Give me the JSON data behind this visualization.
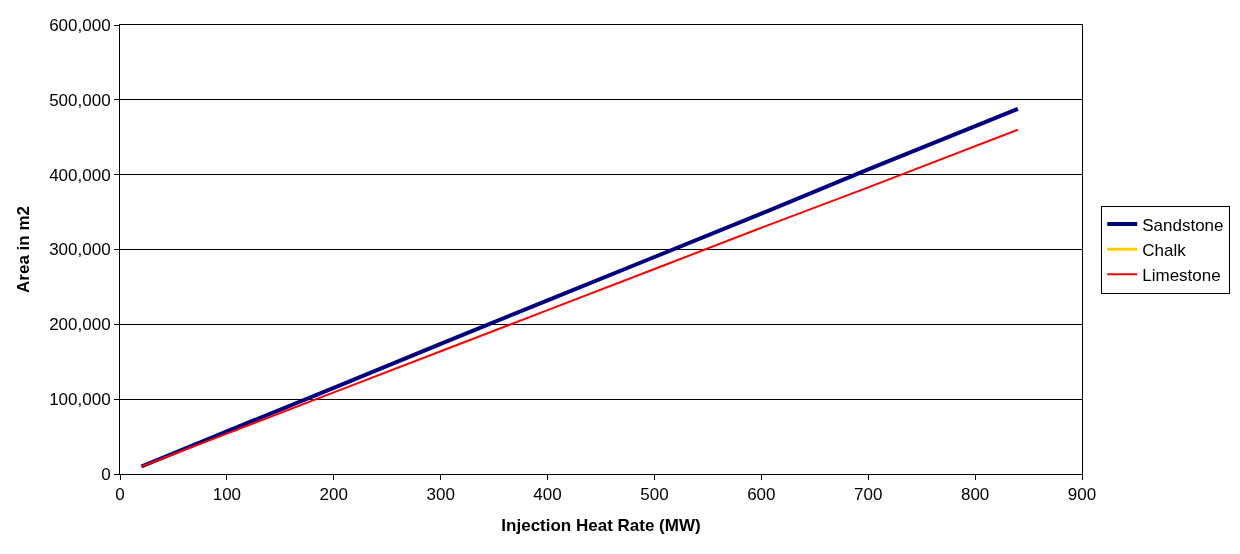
{
  "chart_data": {
    "type": "line",
    "xlabel": "Injection Heat Rate (MW)",
    "ylabel": "Area in m2",
    "x": [
      20,
      100,
      200,
      300,
      400,
      500,
      600,
      700,
      840
    ],
    "series": [
      {
        "name": "Sandstone",
        "color": "#000080",
        "values": [
          10000,
          57000,
          115000,
          174000,
          232000,
          290000,
          348000,
          407000,
          488000
        ]
      },
      {
        "name": "Chalk",
        "color": "#ffcc00",
        "values": [
          null,
          null,
          null,
          null,
          null,
          null,
          null,
          null,
          null
        ]
      },
      {
        "name": "Limestone",
        "color": "#ff0000",
        "values": [
          10000,
          54000,
          109000,
          164000,
          219000,
          274000,
          329000,
          383000,
          460000
        ]
      }
    ],
    "xlim": [
      0,
      900
    ],
    "xticks": [
      0,
      100,
      200,
      300,
      400,
      500,
      600,
      700,
      800,
      900
    ],
    "ylim": [
      0,
      600000
    ],
    "yticks": [
      {
        "value": 0,
        "label": "0"
      },
      {
        "value": 100000,
        "label": "100,000"
      },
      {
        "value": 200000,
        "label": "200,000"
      },
      {
        "value": 300000,
        "label": "300,000"
      },
      {
        "value": 400000,
        "label": "400,000"
      },
      {
        "value": 500000,
        "label": "500,000"
      },
      {
        "value": 600000,
        "label": "600,000"
      }
    ],
    "grid": "y",
    "legend": "right",
    "marker": "none",
    "line_style": "solid"
  }
}
